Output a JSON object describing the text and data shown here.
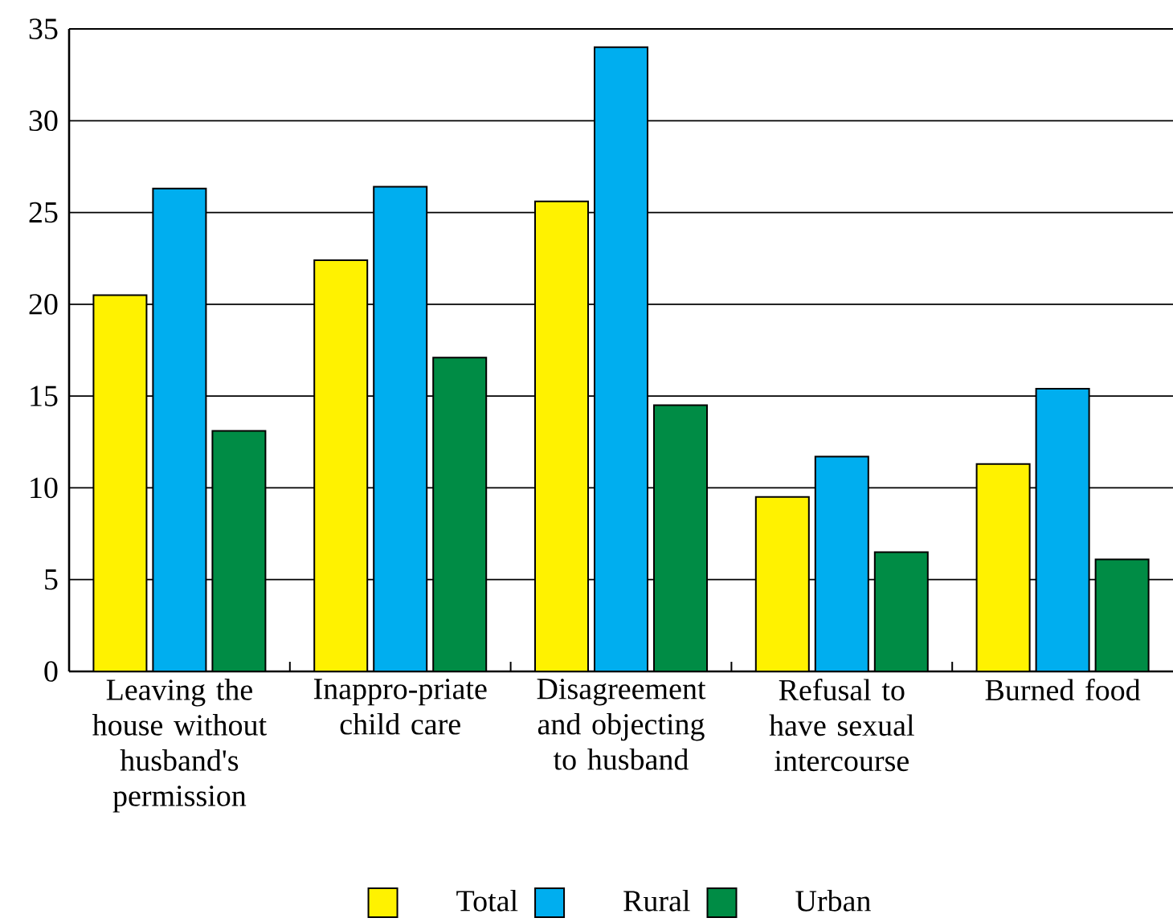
{
  "chart_data": {
    "type": "bar",
    "categories": [
      "Leaving the house without husband's permission",
      "Inappro-priate child care",
      "Disagreement and objecting to husband",
      "Refusal to have sexual intercourse",
      "Burned food"
    ],
    "series": [
      {
        "name": "Total",
        "color": "#fff200",
        "values": [
          20.5,
          22.4,
          25.6,
          9.5,
          11.3
        ]
      },
      {
        "name": "Rural",
        "color": "#00aeef",
        "values": [
          26.3,
          26.4,
          34.0,
          11.7,
          15.4
        ]
      },
      {
        "name": "Urban",
        "color": "#008c45",
        "values": [
          13.1,
          17.1,
          14.5,
          6.5,
          6.1
        ]
      }
    ],
    "ylim": [
      0,
      35
    ],
    "yticks": [
      0,
      5,
      10,
      15,
      20,
      25,
      30,
      35
    ],
    "grid": "y",
    "legend": "bottom"
  }
}
